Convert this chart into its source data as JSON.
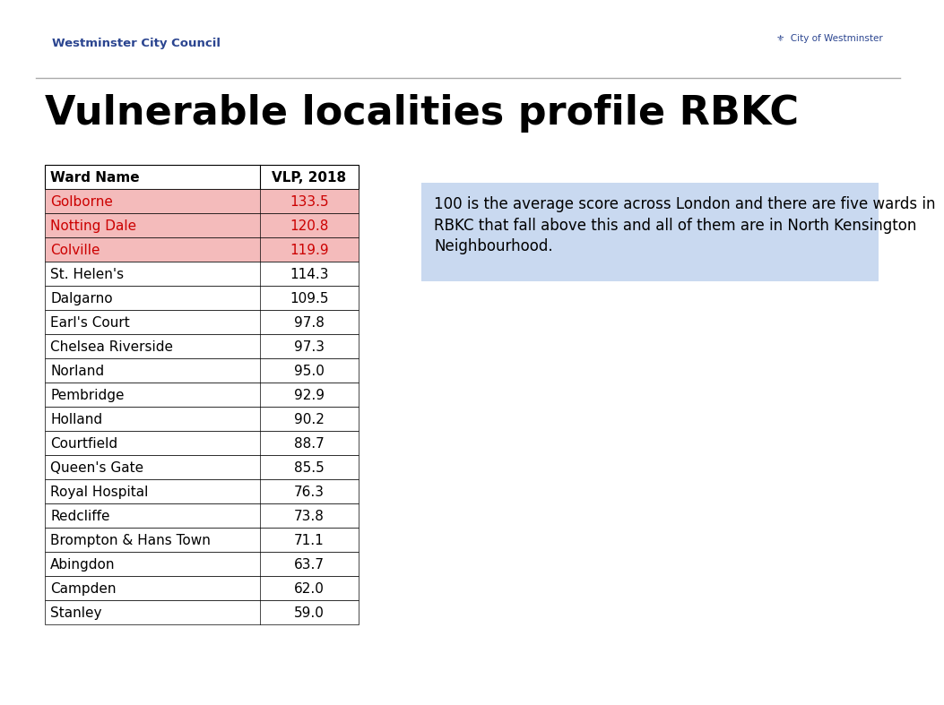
{
  "title": "Vulnerable localities profile RBKC",
  "header_org": "Westminster City Council",
  "header_color": "#2B4590",
  "table_headers": [
    "Ward Name",
    "VLP, 2018"
  ],
  "table_data": [
    [
      "Golborne",
      "133.5"
    ],
    [
      "Notting Dale",
      "120.8"
    ],
    [
      "Colville",
      "119.9"
    ],
    [
      "St. Helen's",
      "114.3"
    ],
    [
      "Dalgarno",
      "109.5"
    ],
    [
      "Earl's Court",
      "97.8"
    ],
    [
      "Chelsea Riverside",
      "97.3"
    ],
    [
      "Norland",
      "95.0"
    ],
    [
      "Pembridge",
      "92.9"
    ],
    [
      "Holland",
      "90.2"
    ],
    [
      "Courtfield",
      "88.7"
    ],
    [
      "Queen's Gate",
      "85.5"
    ],
    [
      "Royal Hospital",
      "76.3"
    ],
    [
      "Redcliffe",
      "73.8"
    ],
    [
      "Brompton & Hans Town",
      "71.1"
    ],
    [
      "Abingdon",
      "63.7"
    ],
    [
      "Campden",
      "62.0"
    ],
    [
      "Stanley",
      "59.0"
    ]
  ],
  "highlighted_rows": [
    0,
    1,
    2
  ],
  "highlight_bg": "#F4BBBB",
  "highlight_text": "#CC0000",
  "normal_bg": "#FFFFFF",
  "normal_text": "#000000",
  "header_bg": "#FFFFFF",
  "header_text": "#000000",
  "note_text": "100 is the average score across London and there are five wards in\nRBKC that fall above this and all of them are in North Kensington\nNeighbourhood.",
  "note_bg": "#C9D9F0",
  "separator_color": "#AAAAAA",
  "title_fontsize": 32,
  "table_fontsize": 11,
  "note_fontsize": 12
}
